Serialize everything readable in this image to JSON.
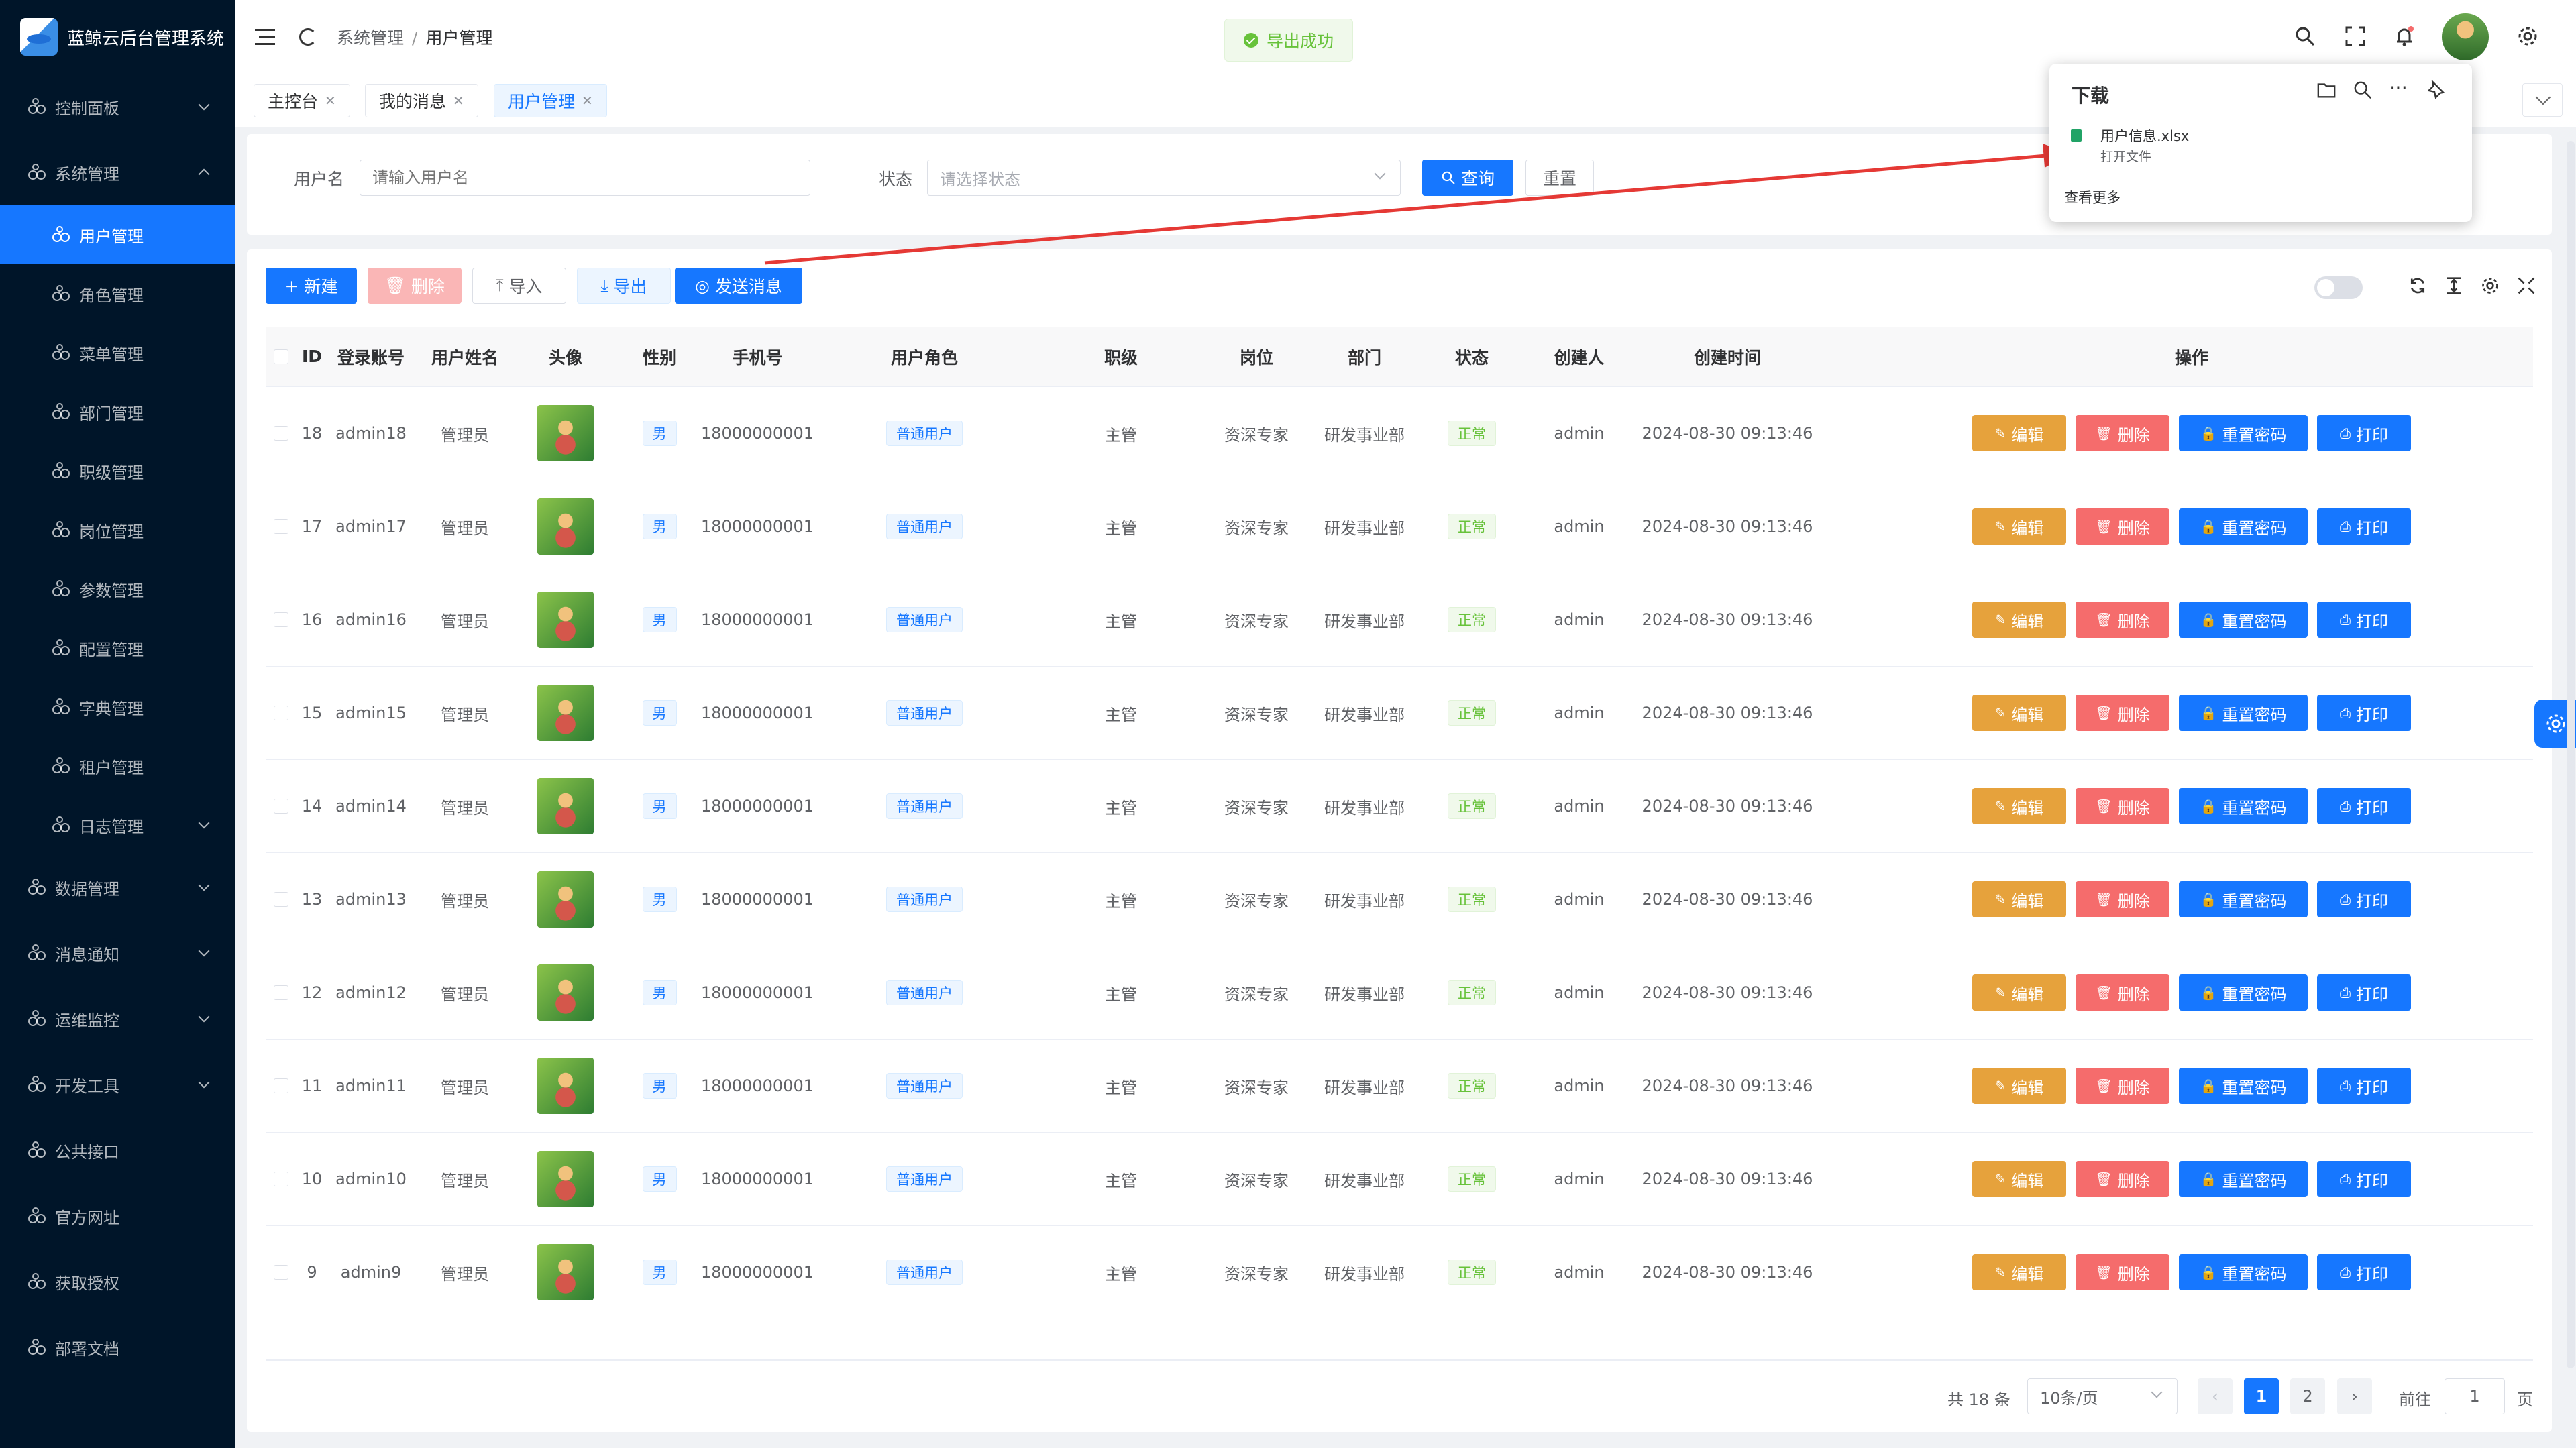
{
  "app": {
    "title": "蓝鲸云后台管理系统"
  },
  "sidebar": {
    "items": [
      {
        "label": "控制面板",
        "has_children": true,
        "expanded": false
      },
      {
        "label": "系统管理",
        "has_children": true,
        "expanded": true
      },
      {
        "label": "用户管理",
        "sub": true,
        "active": true
      },
      {
        "label": "角色管理",
        "sub": true
      },
      {
        "label": "菜单管理",
        "sub": true
      },
      {
        "label": "部门管理",
        "sub": true
      },
      {
        "label": "职级管理",
        "sub": true
      },
      {
        "label": "岗位管理",
        "sub": true
      },
      {
        "label": "参数管理",
        "sub": true
      },
      {
        "label": "配置管理",
        "sub": true
      },
      {
        "label": "字典管理",
        "sub": true
      },
      {
        "label": "租户管理",
        "sub": true
      },
      {
        "label": "日志管理",
        "sub": true,
        "has_children": true
      },
      {
        "label": "数据管理",
        "has_children": true
      },
      {
        "label": "消息通知",
        "has_children": true
      },
      {
        "label": "运维监控",
        "has_children": true
      },
      {
        "label": "开发工具",
        "has_children": true
      },
      {
        "label": "公共接口"
      },
      {
        "label": "官方网址"
      },
      {
        "label": "获取授权"
      },
      {
        "label": "部署文档"
      }
    ]
  },
  "header": {
    "breadcrumb": [
      "系统管理",
      "用户管理"
    ],
    "toast": "导出成功"
  },
  "tabs": [
    {
      "label": "主控台",
      "active": false
    },
    {
      "label": "我的消息",
      "active": false
    },
    {
      "label": "用户管理",
      "active": true
    }
  ],
  "search": {
    "username_label": "用户名",
    "username_placeholder": "请输入用户名",
    "status_label": "状态",
    "status_placeholder": "请选择状态",
    "query_btn": "查询",
    "reset_btn": "重置"
  },
  "toolbar": {
    "new": "新建",
    "delete": "删除",
    "import": "导入",
    "export": "导出",
    "send": "发送消息"
  },
  "download": {
    "title": "下载",
    "file": "用户信息.xlsx",
    "open": "打开文件",
    "more": "查看更多"
  },
  "table": {
    "columns": [
      "ID",
      "登录账号",
      "用户姓名",
      "头像",
      "性别",
      "手机号",
      "用户角色",
      "职级",
      "岗位",
      "部门",
      "状态",
      "创建人",
      "创建时间",
      "操作"
    ],
    "rows": [
      {
        "id": "18",
        "account": "admin18",
        "name": "管理员",
        "gender": "男",
        "phone": "18000000001",
        "role": "普通用户",
        "rank": "主管",
        "post": "资深专家",
        "dept": "研发事业部",
        "status": "正常",
        "creator": "admin",
        "created": "2024-08-30 09:13:46"
      },
      {
        "id": "17",
        "account": "admin17",
        "name": "管理员",
        "gender": "男",
        "phone": "18000000001",
        "role": "普通用户",
        "rank": "主管",
        "post": "资深专家",
        "dept": "研发事业部",
        "status": "正常",
        "creator": "admin",
        "created": "2024-08-30 09:13:46"
      },
      {
        "id": "16",
        "account": "admin16",
        "name": "管理员",
        "gender": "男",
        "phone": "18000000001",
        "role": "普通用户",
        "rank": "主管",
        "post": "资深专家",
        "dept": "研发事业部",
        "status": "正常",
        "creator": "admin",
        "created": "2024-08-30 09:13:46"
      },
      {
        "id": "15",
        "account": "admin15",
        "name": "管理员",
        "gender": "男",
        "phone": "18000000001",
        "role": "普通用户",
        "rank": "主管",
        "post": "资深专家",
        "dept": "研发事业部",
        "status": "正常",
        "creator": "admin",
        "created": "2024-08-30 09:13:46"
      },
      {
        "id": "14",
        "account": "admin14",
        "name": "管理员",
        "gender": "男",
        "phone": "18000000001",
        "role": "普通用户",
        "rank": "主管",
        "post": "资深专家",
        "dept": "研发事业部",
        "status": "正常",
        "creator": "admin",
        "created": "2024-08-30 09:13:46"
      },
      {
        "id": "13",
        "account": "admin13",
        "name": "管理员",
        "gender": "男",
        "phone": "18000000001",
        "role": "普通用户",
        "rank": "主管",
        "post": "资深专家",
        "dept": "研发事业部",
        "status": "正常",
        "creator": "admin",
        "created": "2024-08-30 09:13:46"
      },
      {
        "id": "12",
        "account": "admin12",
        "name": "管理员",
        "gender": "男",
        "phone": "18000000001",
        "role": "普通用户",
        "rank": "主管",
        "post": "资深专家",
        "dept": "研发事业部",
        "status": "正常",
        "creator": "admin",
        "created": "2024-08-30 09:13:46"
      },
      {
        "id": "11",
        "account": "admin11",
        "name": "管理员",
        "gender": "男",
        "phone": "18000000001",
        "role": "普通用户",
        "rank": "主管",
        "post": "资深专家",
        "dept": "研发事业部",
        "status": "正常",
        "creator": "admin",
        "created": "2024-08-30 09:13:46"
      },
      {
        "id": "10",
        "account": "admin10",
        "name": "管理员",
        "gender": "男",
        "phone": "18000000001",
        "role": "普通用户",
        "rank": "主管",
        "post": "资深专家",
        "dept": "研发事业部",
        "status": "正常",
        "creator": "admin",
        "created": "2024-08-30 09:13:46"
      },
      {
        "id": "9",
        "account": "admin9",
        "name": "管理员",
        "gender": "男",
        "phone": "18000000001",
        "role": "普通用户",
        "rank": "主管",
        "post": "资深专家",
        "dept": "研发事业部",
        "status": "正常",
        "creator": "admin",
        "created": "2024-08-30 09:13:46"
      }
    ],
    "actions": {
      "edit": "编辑",
      "delete": "删除",
      "reset_pwd": "重置密码",
      "print": "打印"
    }
  },
  "pagination": {
    "total": "共 18 条",
    "page_size": "10条/页",
    "pages": [
      "1",
      "2"
    ],
    "current": "1",
    "goto_label": "前往",
    "goto_value": "1",
    "page_unit": "页"
  },
  "colors": {
    "primary": "#1677ff",
    "sidebar": "#001529",
    "warning": "#e6a23c",
    "danger": "#f56c6c",
    "success": "#67c23a"
  }
}
